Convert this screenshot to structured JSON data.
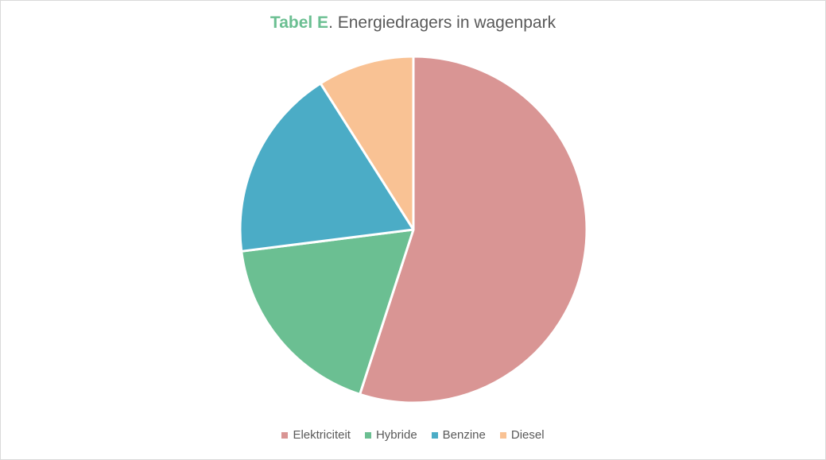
{
  "chart_data": {
    "type": "pie",
    "title_prefix": "Tabel E",
    "title_rest": ". Energiedragers in wagenpark",
    "categories": [
      "Elektriciteit",
      "Hybride",
      "Benzine",
      "Diesel"
    ],
    "values": [
      55,
      18,
      18,
      9
    ],
    "colors": [
      "#d99594",
      "#6bbf92",
      "#4bacc6",
      "#f9c294"
    ],
    "legend_position": "bottom"
  }
}
